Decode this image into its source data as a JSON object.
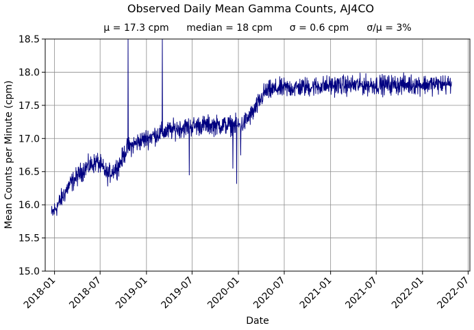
{
  "chart_data": {
    "type": "line",
    "title": "Observed Daily Mean Gamma Counts, AJ4CO",
    "subtitle": {
      "mean": "μ = 17.3 cpm",
      "median": "median = 18 cpm",
      "sigma": "σ = 0.6 cpm",
      "ratio": "σ/μ = 3%"
    },
    "xlabel": "Date",
    "ylabel": "Mean Counts per Minute (cpm)",
    "xlim": [
      "2017-11-25",
      "2022-07-08"
    ],
    "ylim": [
      15.0,
      18.5
    ],
    "x_ticks": [
      "2018-01",
      "2018-07",
      "2019-01",
      "2019-07",
      "2020-01",
      "2020-07",
      "2021-01",
      "2021-07",
      "2022-01",
      "2022-07"
    ],
    "y_ticks": [
      "15.0",
      "15.5",
      "16.0",
      "16.5",
      "17.0",
      "17.5",
      "18.0",
      "18.5"
    ],
    "grid": true,
    "line_color": "#000080",
    "series": [
      {
        "x_start": "2017-12-20",
        "x_end": "2022-04-26",
        "interval": "daily",
        "trend": [
          [
            "2017-12-20",
            15.85
          ],
          [
            "2018-01-15",
            16.0
          ],
          [
            "2018-03-01",
            16.3
          ],
          [
            "2018-05-01",
            16.55
          ],
          [
            "2018-06-20",
            16.65
          ],
          [
            "2018-08-01",
            16.45
          ],
          [
            "2018-09-15",
            16.6
          ],
          [
            "2018-10-15",
            16.85
          ],
          [
            "2018-12-01",
            16.95
          ],
          [
            "2019-02-01",
            17.05
          ],
          [
            "2019-05-01",
            17.15
          ],
          [
            "2019-08-01",
            17.2
          ],
          [
            "2019-11-01",
            17.2
          ],
          [
            "2020-01-15",
            17.2
          ],
          [
            "2020-03-01",
            17.4
          ],
          [
            "2020-04-15",
            17.7
          ],
          [
            "2020-06-01",
            17.75
          ],
          [
            "2021-01-01",
            17.8
          ],
          [
            "2022-04-26",
            17.82
          ]
        ],
        "noise_amplitude": 0.12,
        "spikes": [
          {
            "date": "2018-10-20",
            "value": 18.5
          },
          {
            "date": "2019-03-05",
            "value": 18.5
          },
          {
            "date": "2019-06-20",
            "value": 16.45
          },
          {
            "date": "2019-12-10",
            "value": 16.55
          },
          {
            "date": "2019-12-25",
            "value": 16.32
          },
          {
            "date": "2020-01-10",
            "value": 16.75
          }
        ]
      }
    ]
  }
}
